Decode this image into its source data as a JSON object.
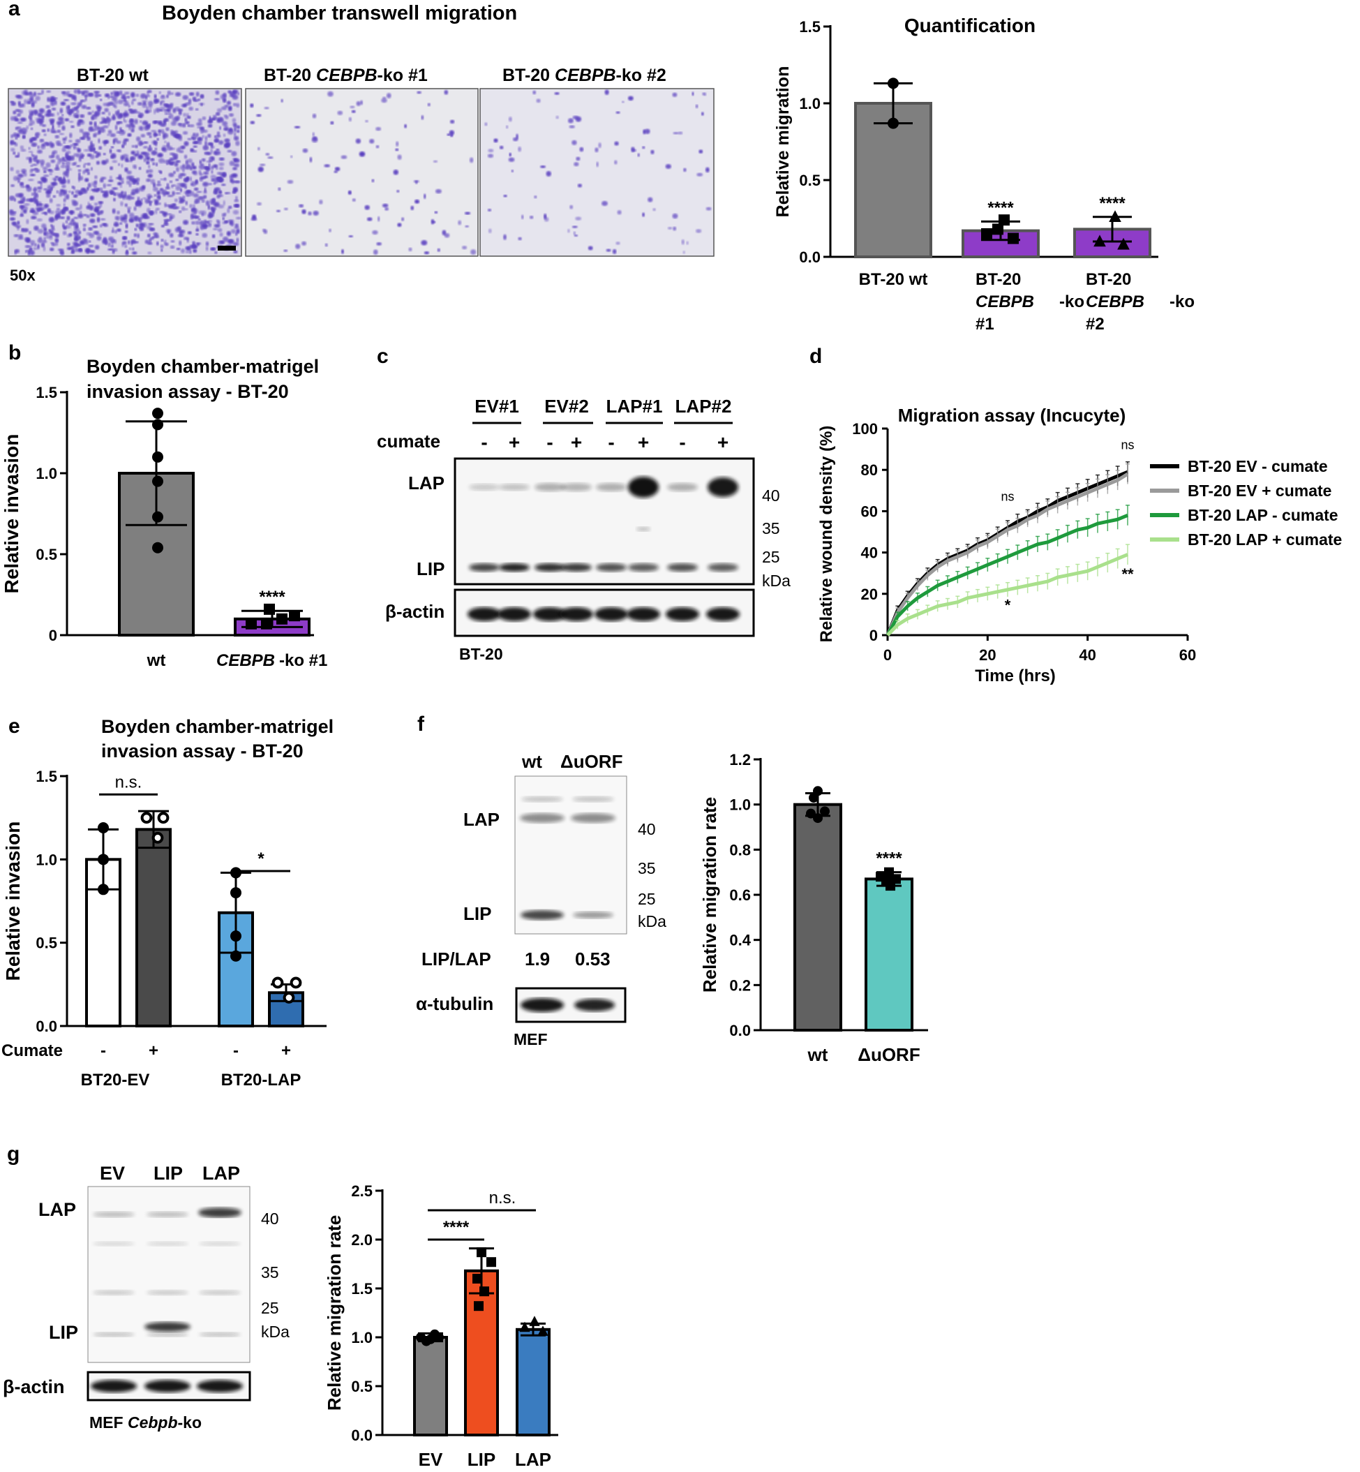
{
  "panel_letters": [
    "a",
    "b",
    "c",
    "d",
    "e",
    "f",
    "g"
  ],
  "panel_a": {
    "title": "Boyden chamber transwell migration",
    "image_labels": [
      "BT-20 wt",
      "BT-20 ",
      "CEBPB",
      "-ko #1",
      "BT-20 ",
      "CEBPB",
      "-ko #2"
    ],
    "magnification": "50x",
    "stain_color": "#5a3fc0"
  },
  "chart_data": [
    {
      "id": "a-quant",
      "type": "bar",
      "title": "Quantification",
      "ylabel": "Relative migration",
      "ylim": [
        0,
        1.5
      ],
      "yticks": [
        "0.0",
        "0.5",
        "1.0",
        "1.5"
      ],
      "categories": [
        [
          "BT-20 wt"
        ],
        [
          "BT-20",
          "CEBPB-ko",
          "#1"
        ],
        [
          "BT-20",
          "CEBPB-ko",
          "#2"
        ]
      ],
      "values": [
        1.0,
        0.17,
        0.18
      ],
      "errors": [
        0.13,
        0.06,
        0.08
      ],
      "colors": [
        "#7f7f7f",
        "#8e3cc8",
        "#8e3cc8"
      ],
      "significance": [
        "",
        "****",
        "****"
      ]
    },
    {
      "id": "b-invasion",
      "type": "bar",
      "title": [
        "Boyden chamber-matrigel",
        "invasion assay - BT-20"
      ],
      "ylabel": "Relative invasion",
      "ylim": [
        0,
        1.5
      ],
      "yticks": [
        "0",
        "0.5",
        "1.0",
        "1.5"
      ],
      "categories": [
        "wt",
        "CEBPB-ko #1"
      ],
      "values": [
        1.0,
        0.1
      ],
      "errors": [
        0.32,
        0.05
      ],
      "colors": [
        "#7f7f7f",
        "#8e3cc8"
      ],
      "significance": [
        "",
        "****"
      ]
    },
    {
      "id": "d-wound",
      "type": "line",
      "title": "Migration assay (Incucyte)",
      "xlabel": "Time (hrs)",
      "ylabel": "Relative wound density (%)",
      "xlim": [
        0,
        60
      ],
      "ylim": [
        0,
        100
      ],
      "xticks": [
        "0",
        "20",
        "40",
        "60"
      ],
      "yticks": [
        "0",
        "20",
        "40",
        "60",
        "80",
        "100"
      ],
      "x": [
        0,
        2,
        4,
        6,
        8,
        10,
        12,
        14,
        16,
        18,
        20,
        22,
        24,
        26,
        28,
        30,
        32,
        34,
        36,
        38,
        40,
        42,
        44,
        46,
        48
      ],
      "series": [
        {
          "name": "BT-20 EV - cumate",
          "color": "#000000",
          "values": [
            0,
            12,
            19,
            25,
            30,
            34,
            37,
            39,
            41,
            44,
            46,
            49,
            52,
            55,
            57,
            60,
            62,
            65,
            67,
            69,
            71,
            73,
            75,
            77,
            79
          ]
        },
        {
          "name": "BT-20 EV + cumate",
          "color": "#9a9a9a",
          "values": [
            0,
            11,
            18,
            24,
            29,
            33,
            36,
            38,
            40,
            43,
            45,
            48,
            51,
            53,
            56,
            58,
            61,
            63,
            65,
            67,
            69,
            71,
            73,
            75,
            78
          ]
        },
        {
          "name": "BT-20 LAP - cumate",
          "color": "#1e9a3c",
          "values": [
            0,
            9,
            14,
            18,
            21,
            24,
            26,
            28,
            30,
            32,
            34,
            36,
            38,
            40,
            42,
            44,
            45,
            47,
            49,
            51,
            52,
            54,
            55,
            56,
            58
          ]
        },
        {
          "name": "BT-20 LAP + cumate",
          "color": "#a9e08c",
          "values": [
            0,
            5,
            8,
            10,
            12,
            14,
            15,
            16,
            18,
            19,
            20,
            21,
            22,
            23,
            24,
            25,
            26,
            28,
            29,
            30,
            31,
            33,
            35,
            37,
            39
          ]
        }
      ],
      "annotations": [
        {
          "text": "ns",
          "x": 48,
          "y": 90
        },
        {
          "text": "ns",
          "x": 24,
          "y": 65
        },
        {
          "text": "*",
          "x": 24,
          "y": 12
        },
        {
          "text": "**",
          "x": 48,
          "y": 27
        }
      ]
    },
    {
      "id": "e-invasion",
      "type": "bar",
      "title": [
        "Boyden chamber-matrigel",
        "invasion assay - BT-20"
      ],
      "ylabel": "Relative invasion",
      "ylim": [
        0,
        1.5
      ],
      "yticks": [
        "0.0",
        "0.5",
        "1.0",
        "1.5"
      ],
      "categories": [
        "-",
        "+",
        "-",
        "+"
      ],
      "groups": [
        "BT20-EV",
        "BT20-LAP"
      ],
      "group_label": "Cumate",
      "values": [
        1.0,
        1.18,
        0.68,
        0.2
      ],
      "errors": [
        0.18,
        0.11,
        0.24,
        0.05
      ],
      "colors": [
        "#ffffff",
        "#4a4a4a",
        "#5aa7dd",
        "#2f6db0"
      ],
      "comparisons": [
        {
          "text": "n.s.",
          "from": 0,
          "to": 1
        },
        {
          "text": "*",
          "from": 2,
          "to": 3
        }
      ]
    },
    {
      "id": "f-migration",
      "type": "bar",
      "ylabel": "Relative migration rate",
      "ylim": [
        0,
        1.2
      ],
      "yticks": [
        "0.0",
        "0.2",
        "0.4",
        "0.6",
        "0.8",
        "1.0",
        "1.2"
      ],
      "categories": [
        "wt",
        "ΔuORF"
      ],
      "values": [
        1.0,
        0.67
      ],
      "errors": [
        0.05,
        0.03
      ],
      "colors": [
        "#616161",
        "#5fc8c0"
      ],
      "significance": [
        "",
        "****"
      ]
    },
    {
      "id": "g-migration",
      "type": "bar",
      "ylabel": "Relative migration rate",
      "ylim": [
        0,
        2.5
      ],
      "yticks": [
        "0.0",
        "0.5",
        "1.0",
        "1.5",
        "2.0",
        "2.5"
      ],
      "categories": [
        "EV",
        "LIP",
        "LAP"
      ],
      "values": [
        1.0,
        1.68,
        1.08
      ],
      "errors": [
        0.04,
        0.23,
        0.06
      ],
      "colors": [
        "#7f7f7f",
        "#ee4e1f",
        "#3a7cc0"
      ],
      "comparisons": [
        {
          "text": "****",
          "from": 0,
          "to": 1
        },
        {
          "text": "n.s.",
          "from": 0,
          "to": 2
        }
      ]
    }
  ],
  "panel_c": {
    "lanes": [
      "EV#1",
      "EV#2",
      "LAP#1",
      "LAP#2"
    ],
    "cumate_label": "cumate",
    "signs": [
      "-",
      "+",
      "-",
      "+",
      "-",
      "+",
      "-",
      "+"
    ],
    "bands": [
      "LAP",
      "LIP"
    ],
    "loading": "β-actin",
    "markers": [
      "40",
      "35",
      "25",
      "kDa"
    ],
    "cell_line": "BT-20"
  },
  "panel_f": {
    "lanes": [
      "wt",
      "ΔuORF"
    ],
    "bands": [
      "LAP",
      "LIP"
    ],
    "markers": [
      "40",
      "35",
      "25",
      "kDa"
    ],
    "ratio_label": "LIP/LAP",
    "ratios": [
      "1.9",
      "0.53"
    ],
    "loading": "α-tubulin",
    "cell_line": "MEF"
  },
  "panel_g": {
    "lanes": [
      "EV",
      "LIP",
      "LAP"
    ],
    "bands": [
      "LAP",
      "LIP"
    ],
    "markers": [
      "40",
      "35",
      "25",
      "kDa"
    ],
    "loading": "β-actin",
    "cell_line": "MEF ",
    "cell_line_italic": "Cebpb",
    "cell_line_suffix": "-ko"
  }
}
